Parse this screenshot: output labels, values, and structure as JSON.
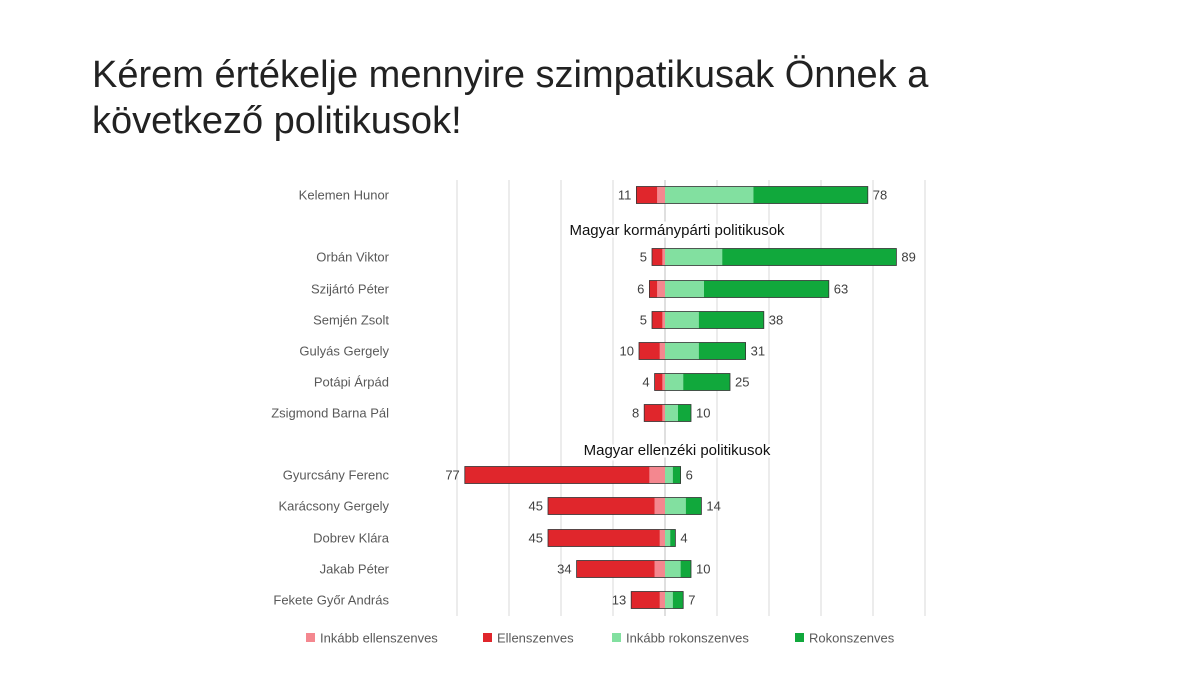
{
  "slide": {
    "title_line1": "Kérem értékelje mennyire szimpatikusak Önnek a",
    "title_line2": "következő politikusok!"
  },
  "chart_data": {
    "type": "bar",
    "orientation": "horizontal-diverging",
    "stacked": true,
    "title": "",
    "grid": true,
    "legend_position": "bottom",
    "group_titles": [
      "Magyar kormánypárti politikusok",
      "Magyar ellenzéki politikusok"
    ],
    "categories": [
      "Kelemen Hunor",
      "Orbán Viktor",
      "Szijártó Péter",
      "Semjén Zsolt",
      "Gulyás Gergely",
      "Potápi Árpád",
      "Zsigmond Barna Pál",
      "Gyurcsány Ferenc",
      "Karácsony Gergely",
      "Dobrev Klára",
      "Jakab Péter",
      "Fekete Győr András"
    ],
    "group_of_category": [
      0,
      1,
      1,
      1,
      1,
      1,
      1,
      2,
      2,
      2,
      2,
      2
    ],
    "series": [
      {
        "name": "Inkább ellenszenves",
        "color": "#f4878f",
        "values": [
          3,
          1,
          3,
          1,
          2,
          1,
          1,
          6,
          4,
          2,
          4,
          2
        ]
      },
      {
        "name": "Ellenszenves",
        "color": "#e0262c",
        "values": [
          8,
          4,
          3,
          4,
          8,
          3,
          7,
          71,
          41,
          43,
          30,
          11
        ]
      },
      {
        "name": "Inkább rokonszenves",
        "color": "#82e0a0",
        "values": [
          34,
          22,
          15,
          13,
          13,
          7,
          5,
          3,
          8,
          2,
          6,
          3
        ]
      },
      {
        "name": "Rokonszenves",
        "color": "#11a83c",
        "values": [
          44,
          67,
          48,
          25,
          18,
          18,
          5,
          3,
          6,
          2,
          4,
          4
        ]
      }
    ],
    "negative_totals": [
      11,
      5,
      6,
      5,
      10,
      4,
      8,
      77,
      45,
      45,
      34,
      13
    ],
    "positive_totals": [
      78,
      89,
      63,
      38,
      31,
      25,
      10,
      6,
      14,
      4,
      10,
      7
    ],
    "xlim": [
      -80,
      100
    ]
  }
}
